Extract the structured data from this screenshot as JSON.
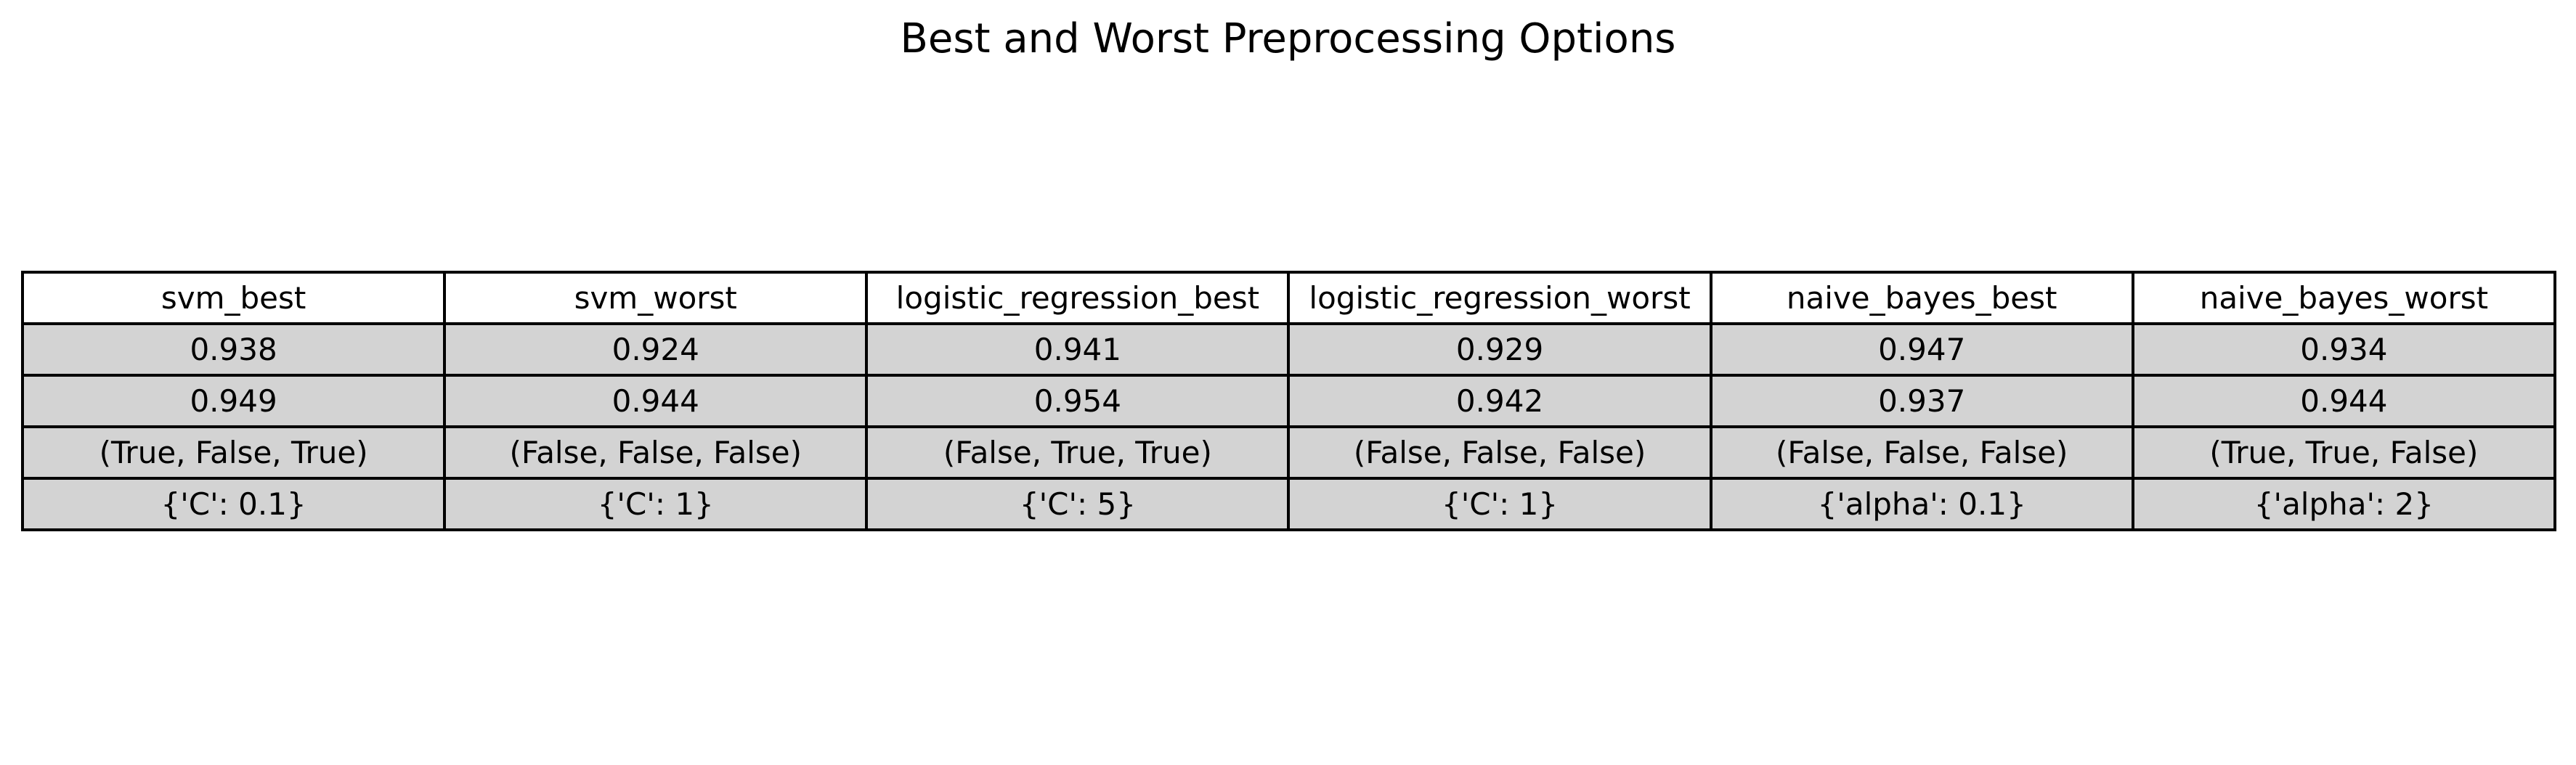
{
  "chart_data": {
    "type": "table",
    "title": "Best and Worst Preprocessing Options",
    "columns": [
      "svm_best",
      "svm_worst",
      "logistic_regression_best",
      "logistic_regression_worst",
      "naive_bayes_best",
      "naive_bayes_worst"
    ],
    "rows": [
      [
        "0.938",
        "0.924",
        "0.941",
        "0.929",
        "0.947",
        "0.934"
      ],
      [
        "0.949",
        "0.944",
        "0.954",
        "0.942",
        "0.937",
        "0.944"
      ],
      [
        "(True, False, True)",
        "(False, False, False)",
        "(False, True, True)",
        "(False, False, False)",
        "(False, False, False)",
        "(True, True, False)"
      ],
      [
        "{'C': 0.1}",
        "{'C': 1}",
        "{'C': 5}",
        "{'C': 1}",
        "{'alpha': 0.1}",
        "{'alpha': 2}"
      ]
    ],
    "header_color": "#ffffff",
    "cell_color": "#d3d3d3",
    "border_color": "#000000"
  }
}
